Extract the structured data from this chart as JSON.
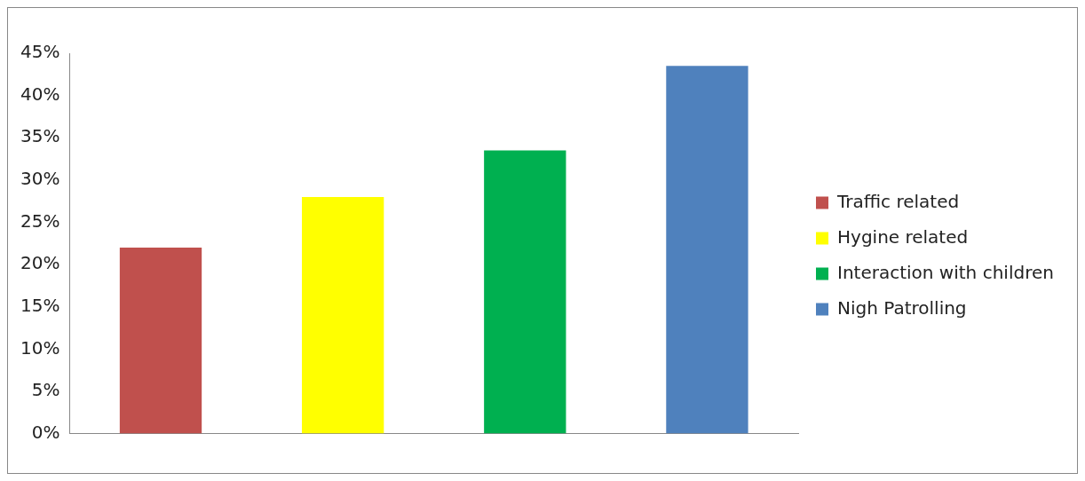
{
  "chart_data": {
    "type": "bar",
    "categories": [
      null,
      null,
      null,
      null
    ],
    "series": [
      {
        "name": "Traffic related",
        "color": "#c0504d",
        "values": [
          22,
          null,
          null,
          null
        ]
      },
      {
        "name": "Hygine related",
        "color": "#ffff00",
        "values": [
          null,
          28,
          null,
          null
        ]
      },
      {
        "name": "Interaction with children",
        "color": "#00b050",
        "values": [
          null,
          null,
          33.5,
          null
        ]
      },
      {
        "name": "Nigh Patrolling",
        "color": "#4f81bd",
        "values": [
          null,
          null,
          null,
          43.5
        ]
      }
    ],
    "ylim": [
      0,
      45
    ],
    "yticks": [
      {
        "value": 0,
        "label": "0%"
      },
      {
        "value": 5,
        "label": "5%"
      },
      {
        "value": 10,
        "label": "10%"
      },
      {
        "value": 15,
        "label": "15%"
      },
      {
        "value": 20,
        "label": "20%"
      },
      {
        "value": 25,
        "label": "25%"
      },
      {
        "value": 30,
        "label": "30%"
      },
      {
        "value": 35,
        "label": "35%"
      },
      {
        "value": 40,
        "label": "40%"
      },
      {
        "value": 45,
        "label": "45%"
      }
    ],
    "grid": false,
    "legend": "right"
  }
}
